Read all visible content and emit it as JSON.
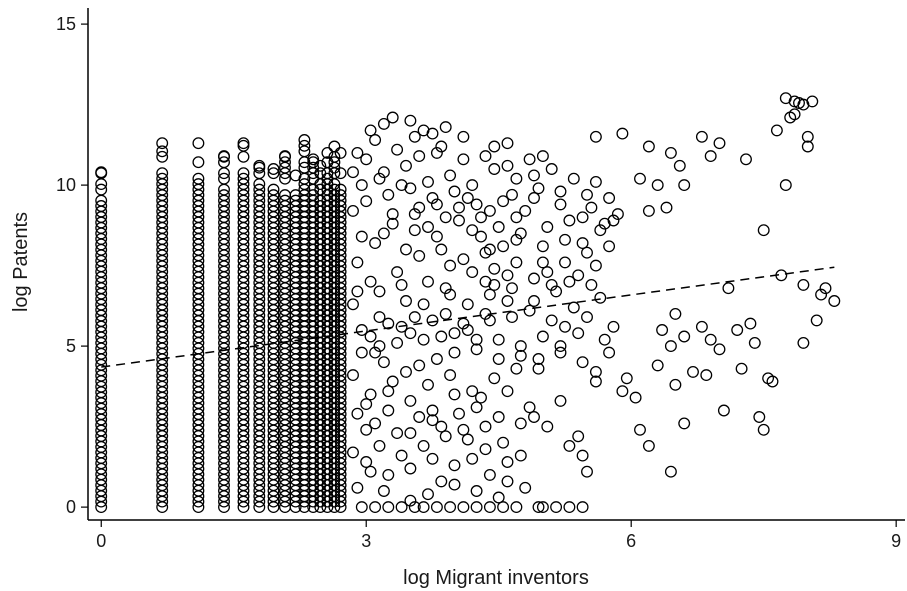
{
  "chart_data": {
    "type": "scatter",
    "title": "",
    "xlabel": "log Migrant inventors",
    "ylabel": "log Patents",
    "xlim": [
      -0.15,
      9.1
    ],
    "ylim": [
      -0.4,
      15.5
    ],
    "x_ticks": [
      0,
      3,
      6,
      9
    ],
    "x_tick_labels": [
      "0",
      "3",
      "6",
      "9"
    ],
    "y_ticks": [
      0,
      5,
      10,
      15
    ],
    "y_tick_labels": [
      "0",
      "5",
      "10",
      "15"
    ],
    "grid": false,
    "legend": "none",
    "marker": "hollow-circle",
    "fit_line": {
      "style": "dashed",
      "x": [
        0,
        8.3
      ],
      "y": [
        4.35,
        7.45
      ]
    },
    "stacks": [
      {
        "x": 0,
        "ymin": 0,
        "ymax": 10.4
      },
      {
        "x": 0.69,
        "ymin": 0,
        "ymax": 11.3
      },
      {
        "x": 1.1,
        "ymin": 0,
        "ymax": 11.3
      },
      {
        "x": 1.39,
        "ymin": 0,
        "ymax": 10.9
      },
      {
        "x": 1.61,
        "ymin": 0,
        "ymax": 11.3
      },
      {
        "x": 1.79,
        "ymin": 0,
        "ymax": 10.6
      },
      {
        "x": 1.95,
        "ymin": 0,
        "ymax": 10.5
      },
      {
        "x": 2.08,
        "ymin": 0,
        "ymax": 10.9
      },
      {
        "x": 2.2,
        "ymin": 0,
        "ymax": 10.3
      },
      {
        "x": 2.3,
        "ymin": 0,
        "ymax": 11.4
      },
      {
        "x": 2.4,
        "ymin": 0,
        "ymax": 10.8
      },
      {
        "x": 2.48,
        "ymin": 0,
        "ymax": 10.6
      },
      {
        "x": 2.56,
        "ymin": 0,
        "ymax": 11.0
      },
      {
        "x": 2.64,
        "ymin": 0,
        "ymax": 11.2
      },
      {
        "x": 2.71,
        "ymin": 0,
        "ymax": 11.0
      }
    ],
    "points": [
      [
        3.5,
        12.0
      ],
      [
        3.65,
        11.7
      ],
      [
        3.2,
        11.9
      ],
      [
        4.1,
        11.5
      ],
      [
        3.9,
        11.8
      ],
      [
        4.6,
        11.3
      ],
      [
        5.6,
        11.5
      ],
      [
        5.9,
        11.6
      ],
      [
        6.2,
        11.2
      ],
      [
        6.45,
        11.0
      ],
      [
        6.8,
        11.5
      ],
      [
        7.0,
        11.3
      ],
      [
        7.3,
        10.8
      ],
      [
        7.65,
        11.7
      ],
      [
        7.75,
        12.7
      ],
      [
        7.85,
        12.6
      ],
      [
        7.95,
        12.5
      ],
      [
        8.05,
        12.6
      ],
      [
        7.8,
        12.1
      ],
      [
        8.0,
        11.5
      ],
      [
        7.85,
        12.2
      ],
      [
        7.9,
        12.55
      ],
      [
        8.0,
        11.2
      ],
      [
        7.75,
        10.0
      ],
      [
        7.5,
        8.6
      ],
      [
        6.4,
        9.3
      ],
      [
        6.9,
        10.9
      ],
      [
        6.1,
        10.2
      ],
      [
        5.85,
        9.1
      ],
      [
        6.2,
        9.2
      ],
      [
        6.55,
        10.6
      ],
      [
        6.6,
        10.0
      ],
      [
        6.3,
        10.0
      ],
      [
        5.75,
        8.1
      ],
      [
        5.6,
        7.5
      ],
      [
        4.9,
        10.3
      ],
      [
        5.2,
        9.8
      ],
      [
        5.5,
        9.7
      ],
      [
        4.7,
        8.3
      ],
      [
        4.4,
        8.0
      ],
      [
        5.0,
        7.6
      ],
      [
        5.3,
        7.0
      ],
      [
        5.1,
        6.9
      ],
      [
        4.95,
        4.3
      ],
      [
        5.2,
        5.0
      ],
      [
        5.4,
        5.4
      ],
      [
        5.6,
        4.2
      ],
      [
        5.75,
        4.8
      ],
      [
        5.95,
        4.0
      ],
      [
        6.05,
        3.4
      ],
      [
        6.1,
        2.4
      ],
      [
        6.2,
        1.9
      ],
      [
        6.35,
        5.5
      ],
      [
        6.45,
        5.0
      ],
      [
        6.5,
        6.0
      ],
      [
        6.6,
        5.3
      ],
      [
        6.7,
        4.2
      ],
      [
        6.8,
        5.6
      ],
      [
        6.9,
        5.2
      ],
      [
        7.0,
        4.9
      ],
      [
        7.1,
        6.8
      ],
      [
        7.2,
        5.5
      ],
      [
        7.25,
        4.3
      ],
      [
        7.35,
        5.7
      ],
      [
        7.45,
        2.8
      ],
      [
        7.5,
        2.4
      ],
      [
        7.55,
        4.0
      ],
      [
        7.6,
        3.9
      ],
      [
        7.7,
        7.2
      ],
      [
        7.95,
        5.1
      ],
      [
        8.1,
        5.8
      ],
      [
        8.15,
        6.6
      ],
      [
        8.2,
        6.8
      ],
      [
        8.3,
        6.4
      ],
      [
        7.95,
        6.9
      ],
      [
        6.3,
        4.4
      ],
      [
        6.5,
        3.8
      ],
      [
        6.6,
        2.6
      ],
      [
        6.45,
        1.1
      ],
      [
        7.05,
        3.0
      ],
      [
        7.4,
        5.1
      ],
      [
        6.85,
        4.1
      ],
      [
        5.9,
        3.6
      ],
      [
        5.6,
        3.9
      ],
      [
        5.4,
        2.2
      ],
      [
        5.45,
        1.6
      ],
      [
        5.5,
        1.1
      ],
      [
        5.3,
        1.9
      ],
      [
        5.0,
        0
      ],
      [
        5.15,
        0
      ],
      [
        5.3,
        0
      ],
      [
        5.45,
        0
      ],
      [
        4.95,
        0
      ],
      [
        4.8,
        0.6
      ],
      [
        4.6,
        0.8
      ],
      [
        4.4,
        1.0
      ],
      [
        4.2,
        1.5
      ],
      [
        4.0,
        1.3
      ],
      [
        3.85,
        0.8
      ],
      [
        3.7,
        0.4
      ],
      [
        3.55,
        0
      ],
      [
        3.4,
        0
      ],
      [
        3.2,
        0.5
      ],
      [
        3.05,
        1.1
      ],
      [
        2.9,
        0.6
      ],
      [
        3.0,
        2.4
      ],
      [
        3.25,
        3.0
      ],
      [
        3.5,
        2.3
      ],
      [
        3.75,
        2.7
      ],
      [
        4.05,
        2.9
      ],
      [
        4.3,
        3.4
      ],
      [
        4.6,
        3.6
      ],
      [
        4.85,
        3.1
      ],
      [
        5.05,
        2.5
      ],
      [
        5.2,
        3.3
      ],
      [
        4.75,
        4.7
      ],
      [
        4.5,
        5.2
      ],
      [
        4.25,
        4.9
      ],
      [
        4.0,
        5.4
      ],
      [
        3.8,
        4.6
      ],
      [
        3.55,
        5.9
      ],
      [
        3.35,
        5.1
      ],
      [
        3.1,
        4.8
      ],
      [
        2.95,
        5.5
      ],
      [
        2.85,
        6.3
      ],
      [
        3.15,
        6.7
      ],
      [
        3.45,
        6.4
      ],
      [
        3.7,
        7.0
      ],
      [
        3.95,
        6.6
      ],
      [
        4.2,
        7.3
      ],
      [
        4.45,
        6.9
      ],
      [
        4.7,
        7.6
      ],
      [
        4.9,
        6.4
      ],
      [
        5.1,
        5.8
      ],
      [
        5.35,
        6.2
      ],
      [
        5.55,
        6.9
      ],
      [
        5.8,
        5.6
      ],
      [
        4.65,
        5.9
      ],
      [
        4.35,
        6.0
      ],
      [
        4.1,
        5.7
      ],
      [
        3.85,
        5.3
      ],
      [
        3.6,
        4.4
      ],
      [
        3.3,
        3.9
      ],
      [
        3.05,
        3.5
      ],
      [
        2.9,
        2.9
      ],
      [
        2.85,
        1.7
      ],
      [
        3.15,
        1.9
      ],
      [
        3.4,
        1.6
      ],
      [
        3.65,
        1.9
      ],
      [
        3.9,
        2.2
      ],
      [
        4.15,
        2.1
      ],
      [
        4.35,
        2.5
      ],
      [
        4.55,
        2.0
      ],
      [
        4.75,
        1.6
      ],
      [
        4.9,
        2.8
      ],
      [
        2.9,
        7.6
      ],
      [
        3.1,
        8.2
      ],
      [
        3.3,
        8.8
      ],
      [
        3.55,
        9.1
      ],
      [
        3.8,
        8.4
      ],
      [
        4.05,
        9.3
      ],
      [
        4.3,
        9.0
      ],
      [
        4.55,
        9.5
      ],
      [
        4.8,
        9.2
      ],
      [
        5.05,
        8.7
      ],
      [
        5.3,
        8.9
      ],
      [
        5.55,
        9.3
      ],
      [
        5.75,
        9.6
      ],
      [
        4.95,
        9.9
      ],
      [
        4.7,
        10.2
      ],
      [
        4.45,
        10.5
      ],
      [
        4.2,
        10.0
      ],
      [
        3.95,
        10.3
      ],
      [
        3.7,
        10.1
      ],
      [
        3.45,
        10.6
      ],
      [
        3.2,
        10.4
      ],
      [
        2.95,
        10.0
      ],
      [
        2.85,
        9.2
      ],
      [
        3.0,
        9.5
      ],
      [
        3.25,
        9.7
      ],
      [
        3.5,
        9.9
      ],
      [
        3.75,
        9.6
      ],
      [
        4.0,
        9.8
      ],
      [
        4.25,
        9.4
      ],
      [
        4.5,
        8.7
      ],
      [
        4.75,
        8.5
      ],
      [
        5.0,
        8.1
      ],
      [
        5.25,
        8.3
      ],
      [
        5.5,
        7.9
      ],
      [
        3.35,
        7.3
      ],
      [
        3.6,
        7.8
      ],
      [
        3.85,
        8.0
      ],
      [
        4.1,
        7.7
      ],
      [
        4.35,
        7.9
      ],
      [
        4.6,
        7.2
      ],
      [
        3.05,
        7.0
      ],
      [
        2.9,
        6.7
      ],
      [
        3.15,
        5.9
      ],
      [
        3.4,
        5.6
      ],
      [
        3.65,
        5.2
      ],
      [
        3.9,
        6.0
      ],
      [
        4.15,
        6.3
      ],
      [
        4.4,
        6.6
      ],
      [
        4.65,
        6.8
      ],
      [
        4.9,
        7.1
      ],
      [
        5.15,
        6.7
      ],
      [
        5.4,
        7.2
      ],
      [
        5.65,
        6.5
      ],
      [
        3.1,
        11.4
      ],
      [
        3.35,
        11.1
      ],
      [
        3.6,
        10.9
      ],
      [
        3.85,
        11.2
      ],
      [
        4.1,
        10.8
      ],
      [
        4.35,
        10.9
      ],
      [
        4.6,
        10.6
      ],
      [
        4.85,
        10.8
      ],
      [
        5.1,
        10.5
      ],
      [
        5.35,
        10.2
      ],
      [
        5.6,
        10.1
      ],
      [
        3.0,
        10.8
      ],
      [
        3.8,
        11.0
      ],
      [
        4.45,
        11.2
      ],
      [
        5.0,
        10.9
      ],
      [
        3.3,
        9.1
      ],
      [
        3.55,
        8.6
      ],
      [
        3.8,
        9.4
      ],
      [
        4.05,
        8.9
      ],
      [
        4.3,
        8.4
      ],
      [
        4.55,
        8.1
      ],
      [
        3.2,
        8.5
      ],
      [
        3.45,
        8.0
      ],
      [
        3.7,
        8.7
      ],
      [
        3.95,
        7.5
      ],
      [
        4.2,
        8.6
      ],
      [
        4.45,
        7.4
      ],
      [
        4.7,
        9.0
      ],
      [
        2.95,
        8.4
      ],
      [
        3.4,
        6.9
      ],
      [
        3.65,
        6.3
      ],
      [
        3.9,
        6.8
      ],
      [
        4.15,
        5.5
      ],
      [
        4.4,
        5.8
      ],
      [
        3.2,
        4.5
      ],
      [
        3.45,
        4.2
      ],
      [
        3.7,
        3.8
      ],
      [
        3.95,
        4.1
      ],
      [
        4.2,
        3.6
      ],
      [
        4.45,
        4.0
      ],
      [
        4.7,
        4.3
      ],
      [
        4.95,
        4.6
      ],
      [
        5.2,
        4.8
      ],
      [
        5.45,
        4.5
      ],
      [
        3.0,
        3.2
      ],
      [
        3.25,
        3.6
      ],
      [
        3.5,
        3.3
      ],
      [
        3.75,
        3.0
      ],
      [
        4.0,
        3.5
      ],
      [
        4.25,
        3.1
      ],
      [
        4.5,
        2.8
      ],
      [
        4.75,
        2.6
      ],
      [
        3.1,
        2.6
      ],
      [
        3.35,
        2.3
      ],
      [
        3.6,
        2.8
      ],
      [
        3.85,
        2.5
      ],
      [
        4.1,
        2.4
      ],
      [
        4.35,
        1.8
      ],
      [
        4.6,
        1.4
      ],
      [
        3.0,
        1.4
      ],
      [
        3.25,
        1.0
      ],
      [
        3.5,
        1.2
      ],
      [
        3.75,
        1.5
      ],
      [
        4.0,
        0.7
      ],
      [
        4.25,
        0.5
      ],
      [
        4.5,
        0.3
      ],
      [
        2.95,
        0
      ],
      [
        3.1,
        0
      ],
      [
        3.25,
        0
      ],
      [
        3.5,
        0.2
      ],
      [
        3.65,
        0
      ],
      [
        3.8,
        0
      ],
      [
        3.95,
        0
      ],
      [
        4.1,
        0
      ],
      [
        4.25,
        0
      ],
      [
        4.4,
        0
      ],
      [
        4.55,
        0
      ],
      [
        4.7,
        0
      ],
      [
        2.85,
        4.1
      ],
      [
        2.95,
        4.8
      ],
      [
        3.05,
        5.3
      ],
      [
        3.15,
        5.0
      ],
      [
        3.25,
        5.7
      ],
      [
        3.5,
        5.4
      ],
      [
        3.75,
        5.8
      ],
      [
        4.0,
        4.8
      ],
      [
        4.25,
        5.2
      ],
      [
        4.5,
        4.6
      ],
      [
        4.75,
        5.0
      ],
      [
        5.0,
        5.3
      ],
      [
        5.25,
        5.6
      ],
      [
        5.5,
        5.9
      ],
      [
        5.7,
        5.2
      ],
      [
        4.85,
        6.1
      ],
      [
        4.6,
        6.4
      ],
      [
        4.35,
        7.0
      ],
      [
        5.05,
        7.3
      ],
      [
        5.25,
        7.6
      ],
      [
        5.45,
        8.2
      ],
      [
        5.65,
        8.6
      ],
      [
        5.8,
        8.9
      ],
      [
        2.9,
        11.0
      ],
      [
        3.05,
        11.7
      ],
      [
        3.3,
        12.1
      ],
      [
        3.55,
        11.5
      ],
      [
        3.75,
        11.6
      ],
      [
        2.85,
        10.4
      ],
      [
        3.15,
        10.2
      ],
      [
        3.4,
        10.0
      ],
      [
        3.6,
        9.3
      ],
      [
        3.9,
        9.0
      ],
      [
        4.15,
        9.6
      ],
      [
        4.4,
        9.2
      ],
      [
        4.65,
        9.7
      ],
      [
        4.9,
        9.6
      ],
      [
        5.2,
        9.4
      ],
      [
        5.45,
        9.0
      ],
      [
        5.7,
        8.8
      ]
    ]
  }
}
